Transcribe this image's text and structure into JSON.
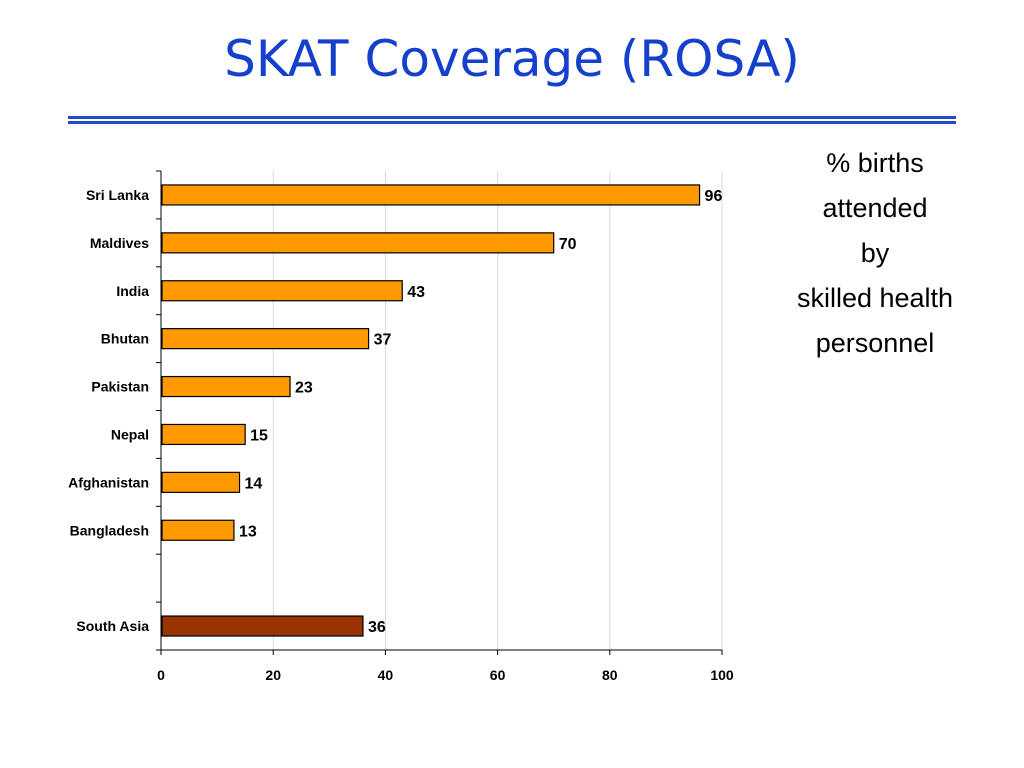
{
  "title": "SKAT Coverage (ROSA)",
  "side_note": [
    "% births",
    "attended",
    "by",
    "skilled health",
    "personnel"
  ],
  "colors": {
    "title": "#1440cc",
    "rule": "#1f4bcc",
    "bar": "#ff9900",
    "highlight_bar": "#993300"
  },
  "chart_data": {
    "type": "bar",
    "orientation": "horizontal",
    "title": "",
    "xlabel": "",
    "ylabel": "",
    "categories": [
      "Sri Lanka",
      "Maldives",
      "India",
      "Bhutan",
      "Pakistan",
      "Nepal",
      "Afghanistan",
      "Bangladesh",
      "",
      "South Asia"
    ],
    "values": [
      96,
      70,
      43,
      37,
      23,
      15,
      14,
      13,
      null,
      36
    ],
    "highlight": [
      "South Asia"
    ],
    "xlim": [
      0,
      100
    ],
    "xticks": [
      0,
      20,
      40,
      60,
      80,
      100
    ],
    "grid": true,
    "data_labels": true
  }
}
